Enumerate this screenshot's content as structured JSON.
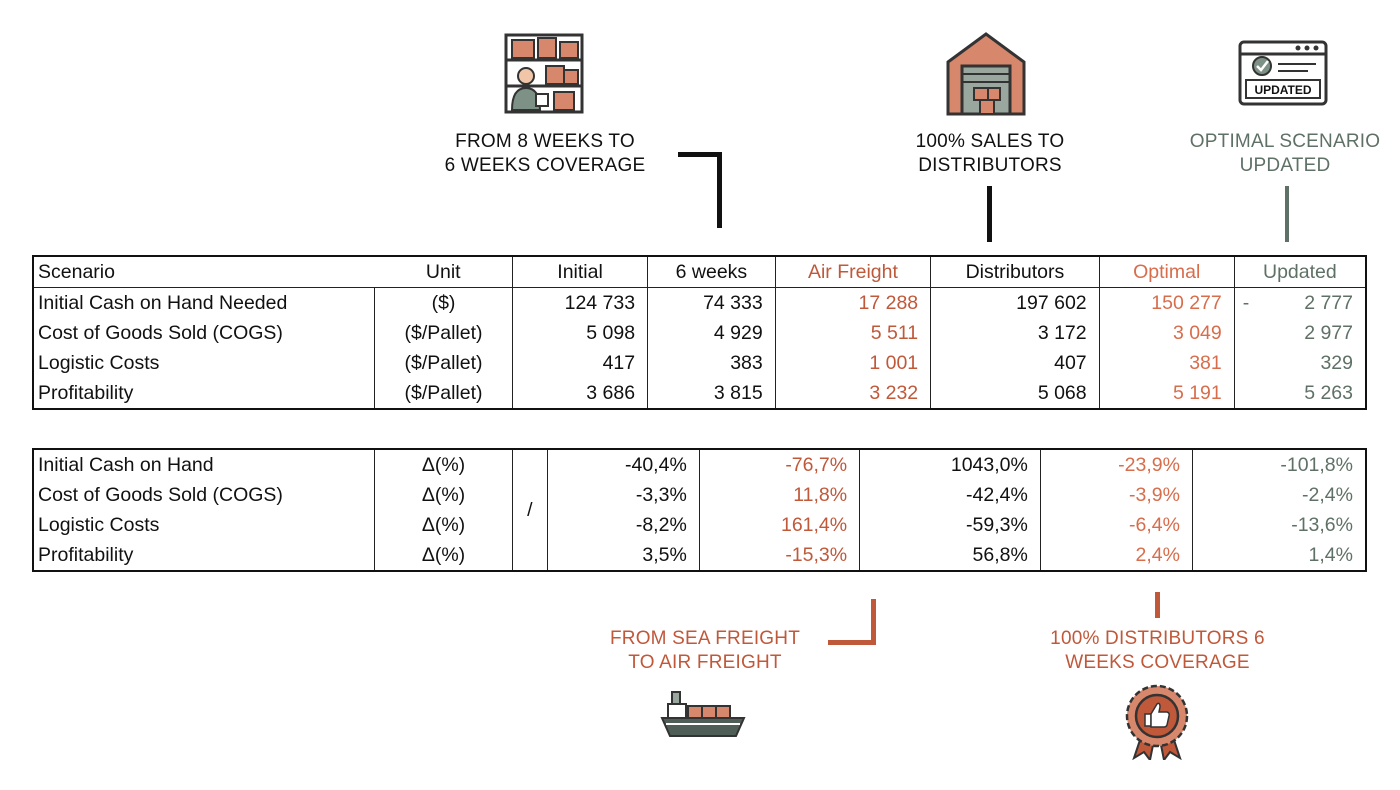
{
  "callouts": {
    "weeks": {
      "line1": "FROM 8 WEEKS TO",
      "line2": "6 WEEKS COVERAGE",
      "icon": "warehouse-shelves-worker-icon"
    },
    "distributors": {
      "line1": "100% SALES TO",
      "line2": "DISTRIBUTORS",
      "icon": "warehouse-building-icon"
    },
    "updated": {
      "line1": "OPTIMAL SCENARIO",
      "line2": "UPDATED",
      "icon": "updated-browser-icon",
      "icon_text": "UPDATED"
    },
    "air": {
      "line1": "FROM SEA FREIGHT",
      "line2": "TO AIR FREIGHT",
      "icon": "cargo-ship-icon"
    },
    "optimal": {
      "line1": "100% DISTRIBUTORS 6",
      "line2": "WEEKS COVERAGE",
      "icon": "thumbs-up-badge-icon"
    }
  },
  "table1": {
    "headers": [
      "Scenario",
      "Unit",
      "Initial",
      "6 weeks",
      "Air Freight",
      "Distributors",
      "Optimal",
      "Updated"
    ],
    "rows": [
      {
        "label": "Initial Cash on Hand Needed",
        "unit": "($)",
        "values": [
          "124 733",
          "74 333",
          "17 288",
          "197 602",
          "150 277",
          "2 777"
        ],
        "updated_prefix": "-"
      },
      {
        "label": "Cost of Goods Sold (COGS)",
        "unit": "($/Pallet)",
        "values": [
          "5 098",
          "4 929",
          "5 511",
          "3 172",
          "3 049",
          "2 977"
        ],
        "updated_prefix": ""
      },
      {
        "label": "Logistic Costs",
        "unit": "($/Pallet)",
        "values": [
          "417",
          "383",
          "1 001",
          "407",
          "381",
          "329"
        ],
        "updated_prefix": ""
      },
      {
        "label": "Profitability",
        "unit": "($/Pallet)",
        "values": [
          "3 686",
          "3 815",
          "3 232",
          "5 068",
          "5 191",
          "5 263"
        ],
        "updated_prefix": ""
      }
    ]
  },
  "table2": {
    "initial_merged": "/",
    "rows": [
      {
        "label": "Initial Cash on Hand",
        "unit": "Δ(%)",
        "values": [
          "-40,4%",
          "-76,7%",
          "1043,0%",
          "-23,9%",
          "-101,8%"
        ]
      },
      {
        "label": "Cost of Goods Sold (COGS)",
        "unit": "Δ(%)",
        "values": [
          "-3,3%",
          "11,8%",
          "-42,4%",
          "-3,9%",
          "-2,4%"
        ]
      },
      {
        "label": "Logistic Costs",
        "unit": "Δ(%)",
        "values": [
          "-8,2%",
          "161,4%",
          "-59,3%",
          "-6,4%",
          "-13,6%"
        ]
      },
      {
        "label": "Profitability",
        "unit": "Δ(%)",
        "values": [
          "3,5%",
          "-15,3%",
          "56,8%",
          "2,4%",
          "1,4%"
        ]
      }
    ]
  },
  "colors": {
    "black": "#111111",
    "orange": "#c0583a",
    "orange_light": "#d86d4c",
    "gray_green": "#5f7166"
  }
}
